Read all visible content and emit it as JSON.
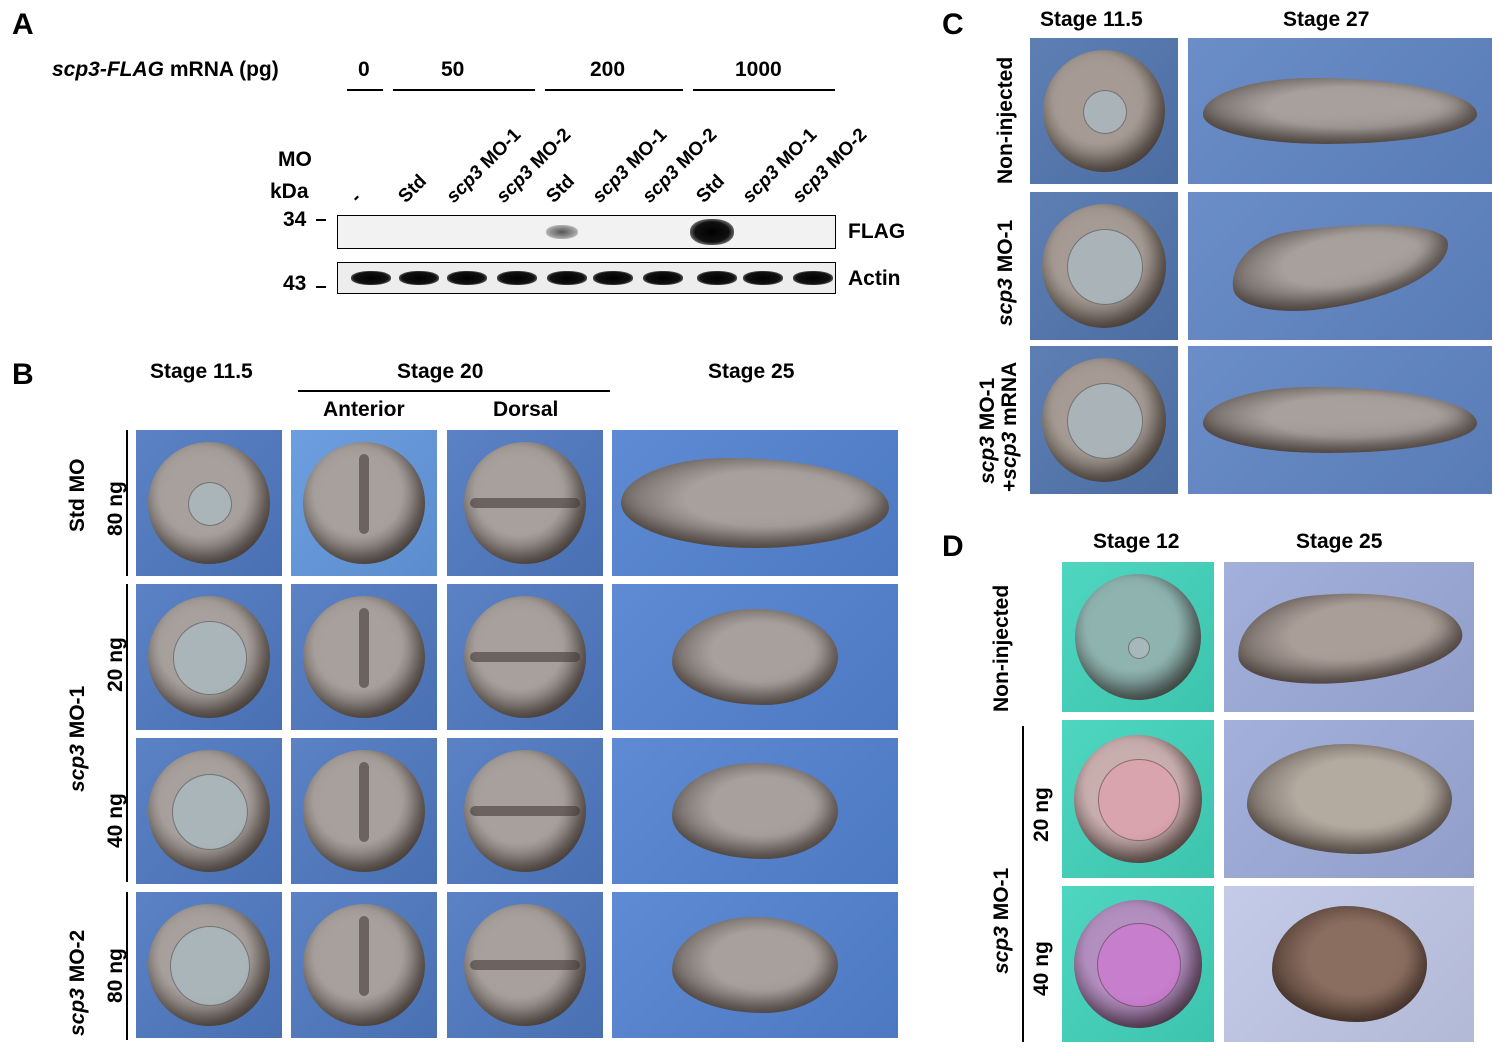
{
  "panelA": {
    "letter": "A",
    "mrna_label_gene": "scp3-FLAG",
    "mrna_label_rest": " mRNA (pg)",
    "doses": [
      "0",
      "50",
      "200",
      "1000"
    ],
    "mo_label": "MO",
    "kda_label": "kDa",
    "lanes": [
      {
        "plain": "-",
        "italic": ""
      },
      {
        "plain": "Std",
        "italic": ""
      },
      {
        "plain": " MO-1",
        "italic": "scp3"
      },
      {
        "plain": " MO-2",
        "italic": "scp3"
      },
      {
        "plain": "Std",
        "italic": ""
      },
      {
        "plain": " MO-1",
        "italic": "scp3"
      },
      {
        "plain": " MO-2",
        "italic": "scp3"
      },
      {
        "plain": "Std",
        "italic": ""
      },
      {
        "plain": " MO-1",
        "italic": "scp3"
      },
      {
        "plain": " MO-2",
        "italic": "scp3"
      }
    ],
    "marker_34": "34",
    "marker_43": "43",
    "flag_label": "FLAG",
    "actin_label": "Actin"
  },
  "panelB": {
    "letter": "B",
    "col_stage115": "Stage 11.5",
    "col_stage20": "Stage 20",
    "col_anterior": "Anterior",
    "col_dorsal": "Dorsal",
    "col_stage25": "Stage 25",
    "row_std": "Std MO",
    "row_std_dose": "80 ng",
    "row_mo1_gene": "scp3",
    "row_mo1_rest": " MO-1",
    "row_mo1_dose1": "20 ng",
    "row_mo1_dose2": "40 ng",
    "row_mo2_gene": "scp3",
    "row_mo2_rest": " MO-2",
    "row_mo2_dose": "80 ng"
  },
  "panelC": {
    "letter": "C",
    "col_stage115": "Stage 11.5",
    "col_stage27": "Stage 27",
    "row_noninj": "Non-injected",
    "row_mo1_gene": "scp3",
    "row_mo1_rest": " MO-1",
    "row_rescue_gene1": "scp3",
    "row_rescue_rest1": " MO-1",
    "row_rescue_plus": "+",
    "row_rescue_gene2": "scp3",
    "row_rescue_rest2": " mRNA"
  },
  "panelD": {
    "letter": "D",
    "col_stage12": "Stage 12",
    "col_stage25": "Stage 25",
    "row_noninj": "Non-injected",
    "row_mo1_gene": "scp3",
    "row_mo1_rest": " MO-1",
    "dose1": "20 ng",
    "dose2": "40 ng"
  },
  "colors": {
    "bg_blue": "#5a82c4",
    "bg_cyan": "#4fd6c0",
    "bg_lavender": "#a4b0dc",
    "embryo": "#9a928e"
  }
}
